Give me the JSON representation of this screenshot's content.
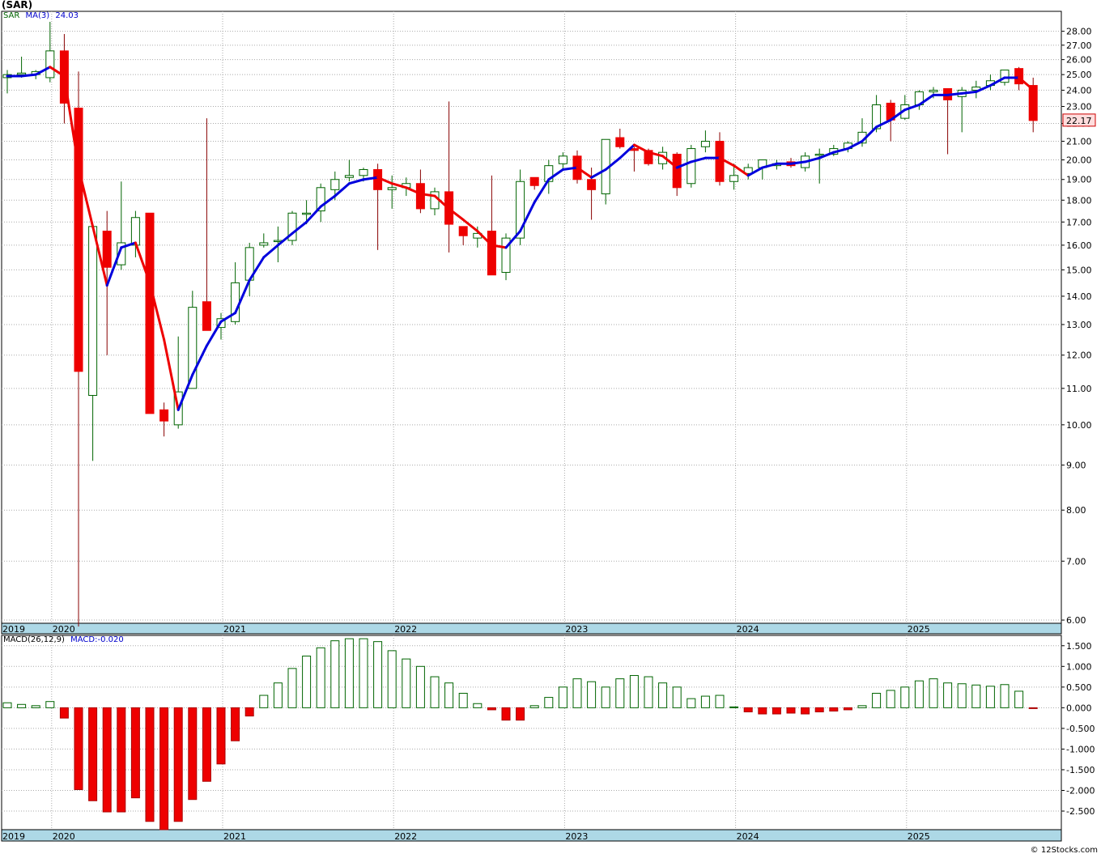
{
  "header": {
    "symbol_title": "(SAR)",
    "legend_symbol": "SAR",
    "legend_ma_label": "MA(3)",
    "legend_ma_value": "24.03"
  },
  "macd_header": {
    "label": "MACD(26,12,9)",
    "value_label": "MACD:-0.020"
  },
  "last_price_label": "22.17",
  "credit": "© 12Stocks.com",
  "colors": {
    "up_candle_fill": "#ffffff",
    "up_candle_stroke": "#006400",
    "down_candle": "#ee0000",
    "ma_up": "#0000dd",
    "ma_down": "#ee0000",
    "macd_pos_stroke": "#006400",
    "macd_neg_fill": "#ee0000",
    "axis_band": "#add8e6",
    "grid": "#aaaaaa"
  },
  "chart_data": [
    {
      "type": "candlestick",
      "name": "price",
      "scale": "log",
      "ylim": [
        5.95,
        29.5
      ],
      "y_ticks": [
        6,
        7,
        8,
        9,
        10,
        11,
        12,
        13,
        14,
        15,
        16,
        17,
        18,
        19,
        20,
        21,
        22,
        23,
        24,
        25,
        26,
        27,
        28
      ],
      "x_year_labels": [
        "2019",
        "2020",
        "2021",
        "2022",
        "2023",
        "2024",
        "2025"
      ],
      "x_year_starts": [
        2019.75,
        2020.0,
        2021.0,
        2022.0,
        2023.0,
        2024.0,
        2025.0
      ],
      "grid": true,
      "ohlc": [
        [
          24.8,
          25.3,
          23.8,
          25.0
        ],
        [
          25.0,
          26.2,
          24.8,
          25.1
        ],
        [
          25.0,
          25.3,
          24.7,
          25.2
        ],
        [
          24.8,
          28.7,
          24.5,
          26.6
        ],
        [
          26.6,
          27.8,
          22.0,
          23.2
        ],
        [
          22.9,
          25.2,
          5.9,
          11.5
        ],
        [
          10.8,
          16.8,
          9.1,
          16.8
        ],
        [
          16.6,
          17.5,
          12.0,
          15.1
        ],
        [
          15.2,
          18.9,
          15.0,
          16.1
        ],
        [
          16.0,
          17.5,
          15.5,
          17.2
        ],
        [
          17.4,
          17.4,
          10.3,
          10.3
        ],
        [
          10.4,
          10.6,
          9.7,
          10.1
        ],
        [
          10.0,
          12.6,
          9.9,
          10.9
        ],
        [
          11.0,
          14.2,
          11.0,
          13.6
        ],
        [
          13.8,
          22.3,
          12.8,
          12.8
        ],
        [
          12.9,
          13.4,
          12.5,
          13.2
        ],
        [
          13.1,
          15.3,
          13.0,
          14.5
        ],
        [
          14.6,
          16.1,
          14.0,
          15.9
        ],
        [
          16.0,
          16.5,
          15.9,
          16.1
        ],
        [
          16.2,
          16.8,
          15.3,
          16.2
        ],
        [
          16.2,
          17.5,
          16.0,
          17.4
        ],
        [
          17.4,
          18.0,
          16.9,
          17.4
        ],
        [
          17.5,
          18.8,
          17.0,
          18.6
        ],
        [
          18.5,
          19.4,
          18.0,
          19.0
        ],
        [
          19.1,
          20.0,
          18.9,
          19.2
        ],
        [
          19.2,
          19.6,
          18.9,
          19.5
        ],
        [
          19.5,
          19.8,
          15.8,
          18.5
        ],
        [
          18.5,
          19.2,
          17.6,
          18.6
        ],
        [
          18.6,
          19.1,
          18.2,
          18.8
        ],
        [
          18.8,
          19.5,
          17.4,
          17.6
        ],
        [
          17.6,
          18.6,
          17.3,
          18.4
        ],
        [
          18.4,
          23.3,
          15.7,
          16.9
        ],
        [
          16.8,
          16.8,
          16.0,
          16.4
        ],
        [
          16.3,
          16.8,
          15.9,
          16.5
        ],
        [
          16.6,
          19.2,
          15.0,
          14.8
        ],
        [
          14.9,
          16.5,
          14.6,
          16.3
        ],
        [
          16.3,
          19.5,
          16.0,
          18.9
        ],
        [
          19.1,
          19.1,
          18.5,
          18.7
        ],
        [
          18.9,
          20.0,
          18.3,
          19.7
        ],
        [
          19.8,
          20.4,
          19.5,
          20.2
        ],
        [
          20.2,
          20.5,
          18.8,
          19.0
        ],
        [
          19.0,
          19.6,
          17.1,
          18.5
        ],
        [
          18.3,
          21.1,
          17.8,
          21.1
        ],
        [
          21.2,
          21.7,
          20.6,
          20.7
        ],
        [
          20.6,
          20.7,
          19.4,
          20.5
        ],
        [
          20.5,
          20.6,
          19.7,
          19.8
        ],
        [
          19.8,
          20.7,
          19.5,
          20.4
        ],
        [
          20.3,
          20.4,
          18.2,
          18.6
        ],
        [
          18.8,
          20.8,
          18.6,
          20.6
        ],
        [
          20.7,
          21.6,
          20.4,
          21.0
        ],
        [
          21.0,
          21.5,
          18.7,
          18.9
        ],
        [
          18.9,
          19.8,
          18.5,
          19.2
        ],
        [
          19.3,
          19.8,
          19.0,
          19.6
        ],
        [
          19.6,
          20.0,
          19.0,
          20.0
        ],
        [
          19.7,
          20.0,
          19.5,
          19.8
        ],
        [
          19.9,
          20.1,
          19.6,
          19.7
        ],
        [
          19.6,
          20.4,
          19.4,
          20.2
        ],
        [
          20.3,
          20.6,
          18.8,
          20.3
        ],
        [
          20.3,
          20.8,
          20.2,
          20.6
        ],
        [
          20.6,
          21.0,
          20.4,
          20.9
        ],
        [
          20.9,
          22.3,
          20.7,
          21.5
        ],
        [
          21.7,
          23.7,
          21.5,
          23.1
        ],
        [
          23.2,
          23.4,
          21.0,
          22.2
        ],
        [
          22.3,
          23.7,
          22.2,
          23.1
        ],
        [
          23.1,
          24.0,
          22.8,
          23.9
        ],
        [
          23.9,
          24.2,
          23.5,
          24.0
        ],
        [
          24.1,
          24.1,
          20.3,
          23.4
        ],
        [
          23.6,
          24.2,
          21.5,
          24.0
        ],
        [
          24.0,
          24.6,
          23.5,
          24.2
        ],
        [
          24.3,
          25.0,
          24.0,
          24.6
        ],
        [
          24.5,
          25.3,
          24.3,
          25.3
        ],
        [
          25.4,
          25.5,
          24.0,
          24.4
        ],
        [
          24.3,
          24.8,
          21.5,
          22.17
        ]
      ],
      "ma3": [
        24.9,
        24.9,
        25.0,
        25.5,
        24.9,
        19.6,
        16.8,
        14.4,
        15.9,
        16.1,
        14.5,
        12.5,
        10.4,
        11.4,
        12.3,
        13.1,
        13.4,
        14.6,
        15.5,
        16.0,
        16.5,
        17.0,
        17.7,
        18.2,
        18.8,
        19.0,
        19.1,
        18.8,
        18.6,
        18.3,
        18.2,
        17.6,
        17.1,
        16.6,
        16.0,
        15.9,
        16.6,
        17.9,
        19.0,
        19.5,
        19.6,
        19.1,
        19.5,
        20.1,
        20.8,
        20.4,
        20.2,
        19.6,
        19.9,
        20.1,
        20.1,
        19.7,
        19.2,
        19.6,
        19.8,
        19.8,
        19.9,
        20.1,
        20.4,
        20.6,
        21.0,
        21.8,
        22.2,
        22.8,
        23.1,
        23.7,
        23.7,
        23.8,
        23.9,
        24.3,
        24.8,
        24.8,
        24.03
      ]
    },
    {
      "type": "bar",
      "name": "MACD",
      "ylim": [
        -2.95,
        1.75
      ],
      "y_ticks": [
        -2.5,
        -2.0,
        -1.5,
        -1.0,
        -0.5,
        0.0,
        0.5,
        1.0,
        1.5
      ],
      "y_tick_labels": [
        "-2.500",
        "-2.000",
        "-1.500",
        "-1.000",
        "-0.500",
        "0.000",
        "0.500",
        "1.000",
        "1.500"
      ],
      "x_year_labels": [
        "2019",
        "2020",
        "2021",
        "2022",
        "2023",
        "2024",
        "2025"
      ],
      "grid": true,
      "values": [
        0.12,
        0.08,
        0.05,
        0.15,
        -0.25,
        -1.98,
        -2.25,
        -2.52,
        -2.52,
        -2.18,
        -2.75,
        -2.95,
        -2.75,
        -2.22,
        -1.78,
        -1.36,
        -0.8,
        -0.2,
        0.3,
        0.6,
        0.95,
        1.25,
        1.45,
        1.62,
        1.67,
        1.67,
        1.6,
        1.38,
        1.18,
        1.0,
        0.75,
        0.6,
        0.35,
        0.1,
        -0.05,
        -0.3,
        -0.3,
        0.05,
        0.25,
        0.5,
        0.7,
        0.63,
        0.5,
        0.7,
        0.78,
        0.75,
        0.6,
        0.5,
        0.22,
        0.28,
        0.3,
        0.02,
        -0.1,
        -0.15,
        -0.15,
        -0.13,
        -0.15,
        -0.1,
        -0.08,
        -0.05,
        0.05,
        0.35,
        0.42,
        0.5,
        0.65,
        0.7,
        0.6,
        0.58,
        0.55,
        0.52,
        0.56,
        0.4,
        -0.02
      ]
    }
  ]
}
